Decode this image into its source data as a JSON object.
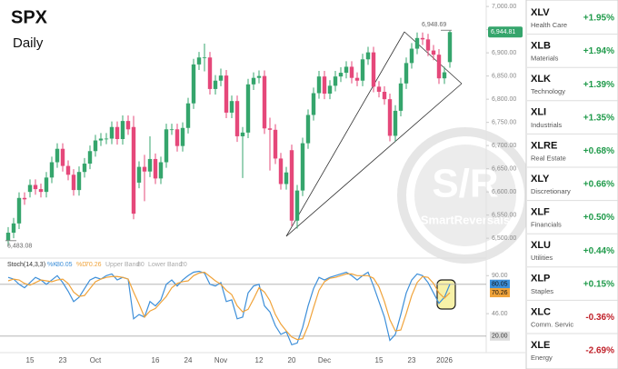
{
  "chart_data": {
    "type": "candlestick",
    "title": "SPX",
    "subtitle": "Daily",
    "categories": [
      null,
      null,
      null,
      null,
      "15",
      null,
      null,
      null,
      null,
      null,
      "23",
      null,
      null,
      null,
      null,
      null,
      "Oct",
      null,
      null,
      null,
      null,
      null,
      null,
      null,
      null,
      null,
      null,
      "16",
      null,
      null,
      null,
      null,
      null,
      "24",
      null,
      null,
      null,
      null,
      null,
      "Nov",
      null,
      null,
      null,
      null,
      null,
      null,
      "12",
      null,
      null,
      null,
      null,
      null,
      "20",
      null,
      null,
      null,
      null,
      null,
      "Dec",
      null,
      null,
      null,
      null,
      null,
      null,
      null,
      null,
      null,
      "15",
      null,
      null,
      null,
      null,
      null,
      "23",
      null,
      null,
      null,
      null,
      null,
      "2026",
      null
    ],
    "open": [
      6495,
      6512,
      6532,
      6587,
      6600,
      6615,
      6606,
      6600,
      6631,
      6664,
      6693,
      6656,
      6637,
      6604,
      6643,
      6661,
      6688,
      6711,
      6715,
      6715,
      6740,
      6714,
      6753,
      6740,
      6620,
      6654,
      6644,
      6671,
      6629,
      6664,
      6735,
      6735,
      6699,
      6738,
      6791,
      6875,
      6890,
      6890,
      6822,
      6840,
      6851,
      6771,
      6796,
      6720,
      6728,
      6832,
      6846,
      6850,
      6737,
      6734,
      6672,
      6617,
      6690,
      6538,
      6603,
      6705,
      6766,
      6813,
      6849,
      6812,
      6829,
      6849,
      6857,
      6870,
      6846,
      6840,
      6886,
      6901,
      6827,
      6816,
      6800,
      6721,
      6775,
      6834,
      6878,
      6909,
      6932,
      6929,
      6905,
      6896,
      6845,
      6880
    ],
    "high": [
      6524,
      6544,
      6599,
      6599,
      6627,
      6627,
      6618,
      6643,
      6676,
      6705,
      6705,
      6668,
      6649,
      6655,
      6673,
      6700,
      6723,
      6727,
      6727,
      6752,
      6752,
      6765,
      6765,
      6764,
      6666,
      6680,
      6720,
      6683,
      6676,
      6747,
      6747,
      6747,
      6750,
      6803,
      6887,
      6902,
      6920,
      6902,
      6852,
      6866,
      6863,
      6808,
      6808,
      6740,
      6844,
      6858,
      6862,
      6862,
      6760,
      6746,
      6684,
      6654,
      6702,
      6615,
      6717,
      6778,
      6825,
      6861,
      6861,
      6841,
      6861,
      6869,
      6882,
      6882,
      6858,
      6898,
      6913,
      6913,
      6839,
      6828,
      6812,
      6787,
      6846,
      6890,
      6921,
      6944,
      6944,
      6941,
      6917,
      6908,
      6870,
      6948.69
    ],
    "low": [
      6483.08,
      6500,
      6520,
      6572,
      6588,
      6594,
      6588,
      6588,
      6619,
      6652,
      6644,
      6625,
      6592,
      6592,
      6631,
      6649,
      6676,
      6699,
      6703,
      6703,
      6702,
      6702,
      6723,
      6541,
      6608,
      6580,
      6632,
      6617,
      6617,
      6652,
      6723,
      6687,
      6687,
      6726,
      6779,
      6863,
      6860,
      6810,
      6810,
      6828,
      6759,
      6759,
      6708,
      6630,
      6716,
      6820,
      6834,
      6725,
      6646,
      6660,
      6605,
      6605,
      6526,
      6521,
      6591,
      6693,
      6754,
      6801,
      6800,
      6800,
      6817,
      6837,
      6845,
      6834,
      6828,
      6828,
      6874,
      6815,
      6804,
      6788,
      6709,
      6709,
      6763,
      6822,
      6866,
      6897,
      6917,
      6893,
      6884,
      6833,
      6833,
      6868
    ],
    "close": [
      6512,
      6532,
      6587,
      6584,
      6615,
      6606,
      6600,
      6631,
      6664,
      6693,
      6656,
      6637,
      6604,
      6643,
      6661,
      6688,
      6711,
      6715,
      6715,
      6740,
      6714,
      6753,
      6735,
      6553,
      6654,
      6644,
      6671,
      6629,
      6664,
      6735,
      6735,
      6699,
      6738,
      6791,
      6875,
      6890,
      6890,
      6822,
      6840,
      6851,
      6771,
      6796,
      6720,
      6728,
      6832,
      6846,
      6850,
      6737,
      6734,
      6672,
      6617,
      6642,
      6538,
      6603,
      6705,
      6766,
      6813,
      6849,
      6812,
      6829,
      6849,
      6857,
      6870,
      6846,
      6840,
      6886,
      6901,
      6827,
      6816,
      6800,
      6721,
      6775,
      6834,
      6878,
      6909,
      6932,
      6929,
      6905,
      6896,
      6845,
      6858,
      6944.81
    ],
    "up_color": "#35a56c",
    "down_color": "#e5487a",
    "ylim": [
      6465,
      7014
    ],
    "yticks": [
      {
        "value": 6500,
        "label": "6,500.00"
      },
      {
        "value": 6550,
        "label": "6,550.00"
      },
      {
        "value": 6600,
        "label": "6,600.00"
      },
      {
        "value": 6650,
        "label": "6,650.00"
      },
      {
        "value": 6700,
        "label": "6,700.00"
      },
      {
        "value": 6750,
        "label": "6,750.00"
      },
      {
        "value": 6800,
        "label": "6,800.00"
      },
      {
        "value": 6850,
        "label": "6,850.00"
      },
      {
        "value": 6900,
        "label": "6,900.00"
      },
      {
        "value": 6950,
        "label": "6,950.00"
      },
      {
        "value": 7000,
        "label": "7,000.00"
      }
    ],
    "annotations": [
      {
        "value": 6948.69,
        "label": "6,948.69"
      },
      {
        "value": 6483.08,
        "label": "6,483.08"
      },
      {
        "value": 6944.81,
        "label": "6,944.81"
      }
    ],
    "watermark": {
      "logo": "S/R",
      "text": "SmartReversals"
    },
    "stoch": {
      "label": "Stoch(14,3,3)",
      "ylim": [
        4,
        104
      ],
      "yticks": [
        {
          "value": 90,
          "label": "90.00"
        },
        {
          "value": 46,
          "label": "46.00"
        }
      ],
      "series": [
        {
          "name": "%K",
          "color": "#3d8fd9",
          "values": [
            88,
            86,
            80,
            76,
            82,
            88,
            85,
            80,
            85,
            90,
            82,
            72,
            60,
            65,
            75,
            85,
            88,
            86,
            90,
            92,
            85,
            88,
            86,
            40,
            45,
            42,
            60,
            55,
            62,
            80,
            85,
            78,
            85,
            90,
            94,
            95,
            93,
            80,
            78,
            82,
            60,
            62,
            40,
            42,
            70,
            78,
            80,
            55,
            48,
            32,
            22,
            25,
            10,
            12,
            30,
            55,
            75,
            88,
            85,
            88,
            90,
            92,
            94,
            90,
            85,
            90,
            94,
            78,
            60,
            42,
            15,
            22,
            45,
            70,
            85,
            92,
            90,
            82,
            70,
            58,
            65,
            80.05
          ]
        },
        {
          "name": "%D",
          "color": "#f0a33a",
          "values": [
            84,
            86,
            85,
            81,
            79,
            82,
            85,
            84,
            83,
            85,
            86,
            81,
            71,
            66,
            67,
            75,
            83,
            86,
            88,
            89,
            89,
            88,
            86,
            71,
            57,
            42,
            49,
            52,
            59,
            66,
            76,
            81,
            83,
            84,
            90,
            93,
            94,
            89,
            84,
            80,
            73,
            68,
            55,
            48,
            51,
            63,
            76,
            71,
            61,
            45,
            34,
            26,
            19,
            16,
            17,
            32,
            53,
            73,
            83,
            87,
            88,
            90,
            92,
            92,
            90,
            90,
            90,
            87,
            77,
            60,
            39,
            26,
            27,
            46,
            67,
            82,
            89,
            88,
            81,
            70,
            64,
            70.26
          ]
        }
      ],
      "bands": [
        {
          "name": "Upper Band",
          "value": 80,
          "label": "80.00"
        },
        {
          "name": "Lower Band",
          "value": 20,
          "label": "20.00"
        }
      ]
    },
    "sectors": [
      {
        "ticker": "XLV",
        "name": "Health Care",
        "change": "+1.95%",
        "color": "#1f9a4a"
      },
      {
        "ticker": "XLB",
        "name": "Materials",
        "change": "+1.94%",
        "color": "#1f9a4a"
      },
      {
        "ticker": "XLK",
        "name": "Technology",
        "change": "+1.39%",
        "color": "#1f9a4a"
      },
      {
        "ticker": "XLI",
        "name": "Industrials",
        "change": "+1.35%",
        "color": "#1f9a4a"
      },
      {
        "ticker": "XLRE",
        "name": "Real Estate",
        "change": "+0.68%",
        "color": "#1f9a4a"
      },
      {
        "ticker": "XLY",
        "name": "Discretionary",
        "change": "+0.66%",
        "color": "#1f9a4a"
      },
      {
        "ticker": "XLF",
        "name": "Financials",
        "change": "+0.50%",
        "color": "#1f9a4a"
      },
      {
        "ticker": "XLU",
        "name": "Utilities",
        "change": "+0.44%",
        "color": "#1f9a4a"
      },
      {
        "ticker": "XLP",
        "name": "Staples",
        "change": "+0.15%",
        "color": "#1f9a4a"
      },
      {
        "ticker": "XLC",
        "name": "Comm. Servic",
        "change": "-0.36%",
        "color": "#c0212a"
      },
      {
        "ticker": "XLE",
        "name": "Energy",
        "change": "-2.69%",
        "color": "#c0212a"
      }
    ]
  }
}
